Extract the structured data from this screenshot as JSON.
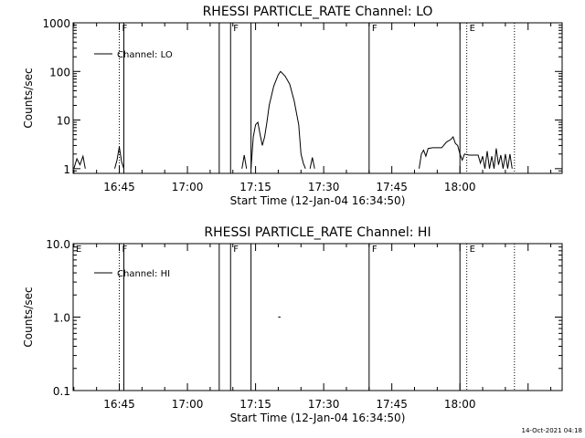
{
  "footer": {
    "timestamp": "14-Oct-2021 04:18"
  },
  "chart_data": [
    {
      "type": "line",
      "title": "RHESSI PARTICLE_RATE Channel: LO",
      "xlabel": "Start Time (12-Jan-04 16:34:50)",
      "ylabel": "Counts/sec",
      "x_unit": "time of day",
      "xlim": [
        "16:34:50",
        "18:22:30"
      ],
      "x_ticks": [
        "16:45",
        "17:00",
        "17:15",
        "17:30",
        "17:45",
        "18:00"
      ],
      "y_scale": "log",
      "ylim": [
        0.8,
        1000
      ],
      "y_ticks": [
        "1",
        "10",
        "100",
        "1000"
      ],
      "legend": {
        "label": "Channel: LO",
        "position": "top-left"
      },
      "flags": [
        {
          "time": "16:45:00",
          "label": "F",
          "style": "dotted"
        },
        {
          "time": "16:46:00",
          "label": "",
          "style": "solid"
        },
        {
          "time": "17:07:00",
          "label": "",
          "style": "solid"
        },
        {
          "time": "17:09:30",
          "label": "F",
          "style": "solid"
        },
        {
          "time": "17:14:00",
          "label": "",
          "style": "solid"
        },
        {
          "time": "17:40:00",
          "label": "F",
          "style": "solid"
        },
        {
          "time": "18:00:00",
          "label": "",
          "style": "solid"
        },
        {
          "time": "18:01:30",
          "label": "E",
          "style": "dotted"
        },
        {
          "time": "18:12:00",
          "label": "",
          "style": "dotted"
        }
      ],
      "segments": [
        [
          [
            "16:35:00",
            1.0
          ],
          [
            "16:35:40",
            1.6
          ],
          [
            "16:36:20",
            1.2
          ],
          [
            "16:37:00",
            1.8
          ],
          [
            "16:37:30",
            1.0
          ]
        ],
        [
          [
            "16:44:00",
            1.0
          ],
          [
            "16:44:30",
            1.5
          ],
          [
            "16:45:00",
            2.8
          ],
          [
            "16:45:30",
            1.4
          ],
          [
            "16:46:00",
            1.0
          ]
        ],
        [
          [
            "17:12:00",
            1.0
          ],
          [
            "17:12:30",
            1.9
          ],
          [
            "17:13:00",
            1.0
          ]
        ],
        [
          [
            "17:14:00",
            1.0
          ],
          [
            "17:14:30",
            4.5
          ],
          [
            "17:15:00",
            8.0
          ],
          [
            "17:15:30",
            9.0
          ],
          [
            "17:16:00",
            5.0
          ],
          [
            "17:16:30",
            3.0
          ],
          [
            "17:17:00",
            4.5
          ],
          [
            "17:17:30",
            9.0
          ],
          [
            "17:18:00",
            20.0
          ],
          [
            "17:19:00",
            50.0
          ],
          [
            "17:20:00",
            85.0
          ],
          [
            "17:20:30",
            100.0
          ],
          [
            "17:21:30",
            80.0
          ],
          [
            "17:22:30",
            55.0
          ],
          [
            "17:23:30",
            25.0
          ],
          [
            "17:24:30",
            8.0
          ],
          [
            "17:25:00",
            2.0
          ],
          [
            "17:25:30",
            1.3
          ],
          [
            "17:26:00",
            1.0
          ]
        ],
        [
          [
            "17:27:00",
            1.0
          ],
          [
            "17:27:30",
            1.7
          ],
          [
            "17:28:00",
            1.0
          ]
        ],
        [
          [
            "17:51:00",
            1.0
          ],
          [
            "17:51:30",
            2.0
          ],
          [
            "17:52:00",
            2.4
          ],
          [
            "17:52:30",
            1.8
          ],
          [
            "17:53:00",
            2.6
          ],
          [
            "17:54:00",
            2.7
          ],
          [
            "17:55:00",
            2.7
          ],
          [
            "17:56:00",
            2.7
          ],
          [
            "17:57:00",
            3.5
          ],
          [
            "17:58:00",
            4.0
          ],
          [
            "17:58:30",
            4.5
          ],
          [
            "17:59:00",
            3.3
          ],
          [
            "17:59:30",
            3.0
          ],
          [
            "18:00:00",
            2.0
          ],
          [
            "18:00:30",
            1.5
          ],
          [
            "18:01:00",
            2.0
          ],
          [
            "18:02:00",
            1.9
          ],
          [
            "18:03:00",
            1.9
          ],
          [
            "18:04:00",
            1.9
          ],
          [
            "18:04:30",
            1.3
          ],
          [
            "18:05:00",
            1.8
          ],
          [
            "18:05:30",
            1.0
          ],
          [
            "18:06:00",
            2.3
          ],
          [
            "18:06:30",
            1.0
          ],
          [
            "18:07:00",
            1.8
          ],
          [
            "18:07:30",
            1.0
          ],
          [
            "18:08:00",
            2.6
          ],
          [
            "18:08:30",
            1.2
          ],
          [
            "18:09:00",
            1.9
          ],
          [
            "18:09:30",
            1.0
          ],
          [
            "18:10:00",
            2.0
          ],
          [
            "18:10:30",
            1.0
          ],
          [
            "18:11:00",
            2.0
          ],
          [
            "18:11:30",
            1.0
          ]
        ]
      ]
    },
    {
      "type": "line",
      "title": "RHESSI PARTICLE_RATE Channel: HI",
      "xlabel": "Start Time (12-Jan-04 16:34:50)",
      "ylabel": "Counts/sec",
      "x_unit": "time of day",
      "xlim": [
        "16:34:50",
        "18:22:30"
      ],
      "x_ticks": [
        "16:45",
        "17:00",
        "17:15",
        "17:30",
        "17:45",
        "18:00"
      ],
      "y_scale": "log",
      "ylim": [
        0.1,
        10
      ],
      "y_ticks": [
        "0.1",
        "1.0",
        "10.0"
      ],
      "legend": {
        "label": "Channel: HI",
        "position": "top-left"
      },
      "flags": [
        {
          "time": "16:34:50",
          "label": "E",
          "style": "none"
        },
        {
          "time": "16:45:00",
          "label": "F",
          "style": "dotted"
        },
        {
          "time": "16:46:00",
          "label": "",
          "style": "solid"
        },
        {
          "time": "17:07:00",
          "label": "",
          "style": "solid"
        },
        {
          "time": "17:09:30",
          "label": "F",
          "style": "solid"
        },
        {
          "time": "17:14:00",
          "label": "",
          "style": "solid"
        },
        {
          "time": "17:40:00",
          "label": "F",
          "style": "solid"
        },
        {
          "time": "18:00:00",
          "label": "",
          "style": "solid"
        },
        {
          "time": "18:01:30",
          "label": "E",
          "style": "dotted"
        },
        {
          "time": "18:12:00",
          "label": "",
          "style": "dotted"
        }
      ],
      "segments": [
        [
          [
            "17:20:00",
            1.0
          ],
          [
            "17:20:30",
            1.0
          ]
        ]
      ]
    }
  ]
}
